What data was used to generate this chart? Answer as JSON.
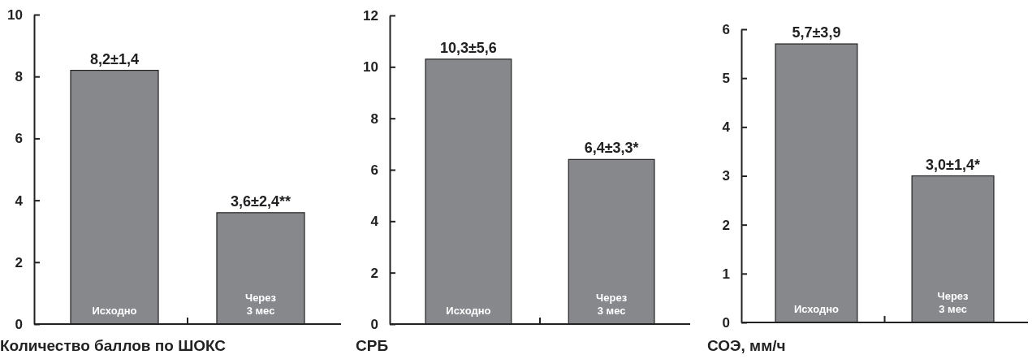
{
  "chart_data": [
    {
      "type": "bar",
      "xlabel": "Количество баллов по ШОКС",
      "categories": [
        "Исходно",
        "Через\n3 мес"
      ],
      "values": [
        8.2,
        3.6
      ],
      "color": "#87888c",
      "ylim": [
        0,
        10
      ],
      "yticks": [
        0,
        2,
        4,
        6,
        8,
        10
      ],
      "value_labels": [
        "8,2±1,4",
        "3,6±2,4**"
      ]
    },
    {
      "type": "bar",
      "xlabel": "СРБ",
      "categories": [
        "Исходно",
        "Через\n3 мес"
      ],
      "values": [
        10.3,
        6.4
      ],
      "color": "#87888c",
      "ylim": [
        0,
        12
      ],
      "yticks": [
        0,
        2,
        4,
        6,
        8,
        10,
        12
      ],
      "value_labels": [
        "10,3±5,6",
        "6,4±3,3*"
      ]
    },
    {
      "type": "bar",
      "xlabel": "СОЭ, мм/ч",
      "categories": [
        "Исходно",
        "Через\n3 мес"
      ],
      "values": [
        5.7,
        3.0
      ],
      "color": "#87888c",
      "ylim": [
        0,
        6
      ],
      "yticks": [
        0,
        1,
        2,
        3,
        4,
        5,
        6
      ],
      "value_labels": [
        "5,7±3,9",
        "3,0±1,4*"
      ]
    }
  ]
}
